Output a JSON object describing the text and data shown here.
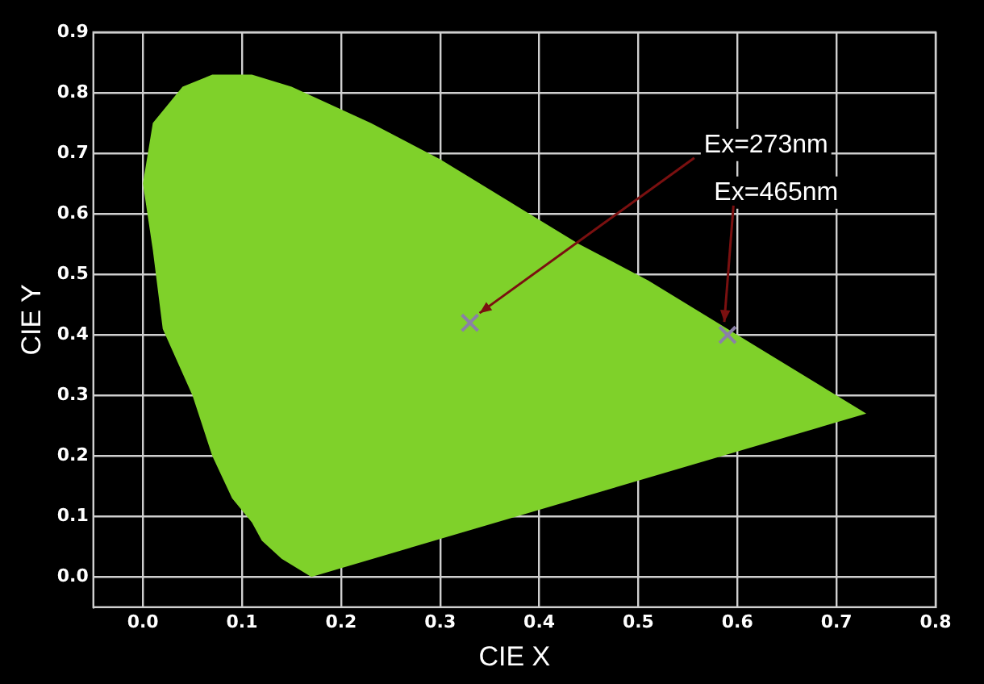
{
  "chart_data": {
    "type": "scatter",
    "xlabel": "CIE X",
    "ylabel": "CIE Y",
    "series": [
      {
        "type": "area",
        "color": "#7fd12a",
        "x": [
          0.17,
          0.14,
          0.12,
          0.11,
          0.09,
          0.07,
          0.05,
          0.02,
          0.01,
          0.0,
          0.01,
          0.04,
          0.07,
          0.11,
          0.15,
          0.23,
          0.3,
          0.37,
          0.44,
          0.51,
          0.58,
          0.63,
          0.69,
          0.73
        ],
        "values": [
          0.0,
          0.03,
          0.06,
          0.09,
          0.13,
          0.2,
          0.3,
          0.41,
          0.54,
          0.65,
          0.75,
          0.81,
          0.83,
          0.83,
          0.81,
          0.75,
          0.69,
          0.62,
          0.55,
          0.49,
          0.42,
          0.37,
          0.31,
          0.27
        ]
      },
      {
        "type": "scatter",
        "color": "#8a80a8",
        "marker": "cross",
        "x": [
          0.33,
          0.59
        ],
        "values": [
          0.42,
          0.4
        ]
      }
    ],
    "xlim": [
      -0.05,
      0.8
    ],
    "xticks": [
      {
        "value": 0,
        "label": "0.0"
      },
      0.1,
      0.2,
      0.3,
      0.4,
      0.5,
      0.6,
      0.7,
      0.8
    ],
    "ylim": [
      -0.05,
      0.9
    ],
    "yticks": [
      {
        "value": 0,
        "label": "0.0"
      },
      0.1,
      0.2,
      0.3,
      0.4,
      0.5,
      0.6,
      0.7,
      0.8,
      0.9
    ],
    "grid": true,
    "legend": false,
    "annotations": [
      {
        "text": "Ex=273nm",
        "x": 0.33,
        "y": 0.42
      },
      {
        "text": "Ex=465nm",
        "x": 0.59,
        "y": 0.4
      }
    ]
  }
}
